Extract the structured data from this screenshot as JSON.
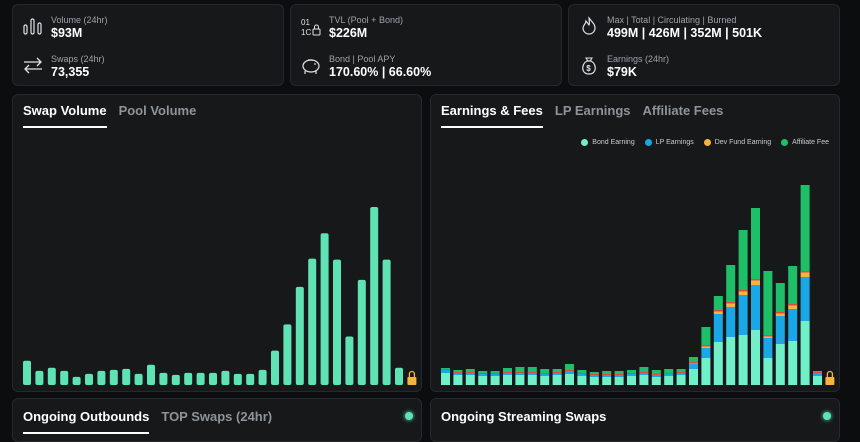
{
  "stats": {
    "volume": {
      "label": "Volume (24hr)",
      "value": "$93M"
    },
    "swaps": {
      "label": "Swaps (24hr)",
      "value": "73,355"
    },
    "tvl": {
      "label": "TVL (Pool + Bond)",
      "value": "$226M"
    },
    "bond_apy": {
      "label": "Bond | Pool APY",
      "value": "170.60% | 66.60%"
    },
    "supply": {
      "label": "Max | Total | Circulating | Burned",
      "value": "499M | 426M | 352M | 501K"
    },
    "earnings": {
      "label": "Earnings (24hr)",
      "value": "$79K"
    }
  },
  "left_panel": {
    "tabs": [
      "Swap Volume",
      "Pool Volume"
    ],
    "active_tab": 0
  },
  "right_panel": {
    "tabs": [
      "Earnings & Fees",
      "LP Earnings",
      "Affiliate Fees"
    ],
    "active_tab": 0
  },
  "bottom_left": {
    "tabs": [
      "Ongoing Outbounds",
      "TOP Swaps (24hr)"
    ],
    "active_tab": 0
  },
  "bottom_right": {
    "title": "Ongoing Streaming Swaps"
  },
  "colors": {
    "accent": "#5fe3b4",
    "bond": "#6ff0c9",
    "lp": "#1aa7e6",
    "dev": "#f3b53f",
    "affiliate": "#1fbf6a",
    "red_band": "#e0493c"
  },
  "icons": [
    "volume-bars-icon",
    "swap-arrows-icon",
    "tvl-icon",
    "piggy-bank-icon",
    "flame-icon",
    "money-bag-icon",
    "lock-icon"
  ],
  "chart_data": [
    {
      "type": "bar",
      "title": "Swap Volume",
      "values": [
        24,
        14,
        17,
        14,
        8,
        11,
        14,
        15,
        16,
        11,
        20,
        12,
        10,
        12,
        12,
        12,
        14,
        11,
        11,
        15,
        34,
        60,
        97,
        125,
        150,
        124,
        48,
        104,
        176,
        124,
        17,
        7
      ],
      "note": "relative values; no axis printed"
    },
    {
      "type": "bar",
      "stacked": true,
      "title": "Earnings & Fees",
      "series": [
        {
          "name": "Bond Earning",
          "values": [
            12,
            10,
            10,
            9,
            9,
            10,
            10,
            10,
            9,
            10,
            11,
            9,
            8,
            8,
            8,
            9,
            10,
            8,
            9,
            10,
            16,
            27,
            43,
            48,
            50,
            55,
            27,
            41,
            44,
            64,
            9,
            3
          ]
        },
        {
          "name": "LP Earnings",
          "values": [
            3,
            2,
            2,
            2,
            2,
            2,
            2,
            2,
            2,
            2,
            3,
            2,
            2,
            2,
            2,
            2,
            2,
            2,
            2,
            2,
            5,
            10,
            28,
            30,
            40,
            45,
            20,
            28,
            32,
            44,
            3,
            1
          ]
        },
        {
          "name": "Dev Fund Earning",
          "values": [
            1,
            1,
            1,
            1,
            1,
            1,
            1,
            1,
            1,
            1,
            1,
            1,
            1,
            1,
            1,
            1,
            1,
            1,
            1,
            1,
            2,
            3,
            4,
            5,
            5,
            6,
            3,
            4,
            5,
            6,
            1,
            1
          ]
        },
        {
          "name": "Affiliate Fee",
          "values": [
            1,
            2,
            3,
            2,
            2,
            4,
            5,
            5,
            4,
            3,
            6,
            3,
            2,
            3,
            3,
            3,
            5,
            4,
            4,
            3,
            5,
            18,
            14,
            37,
            60,
            71,
            64,
            29,
            38,
            86,
            1,
            0
          ]
        }
      ],
      "legend": "top-right"
    }
  ]
}
